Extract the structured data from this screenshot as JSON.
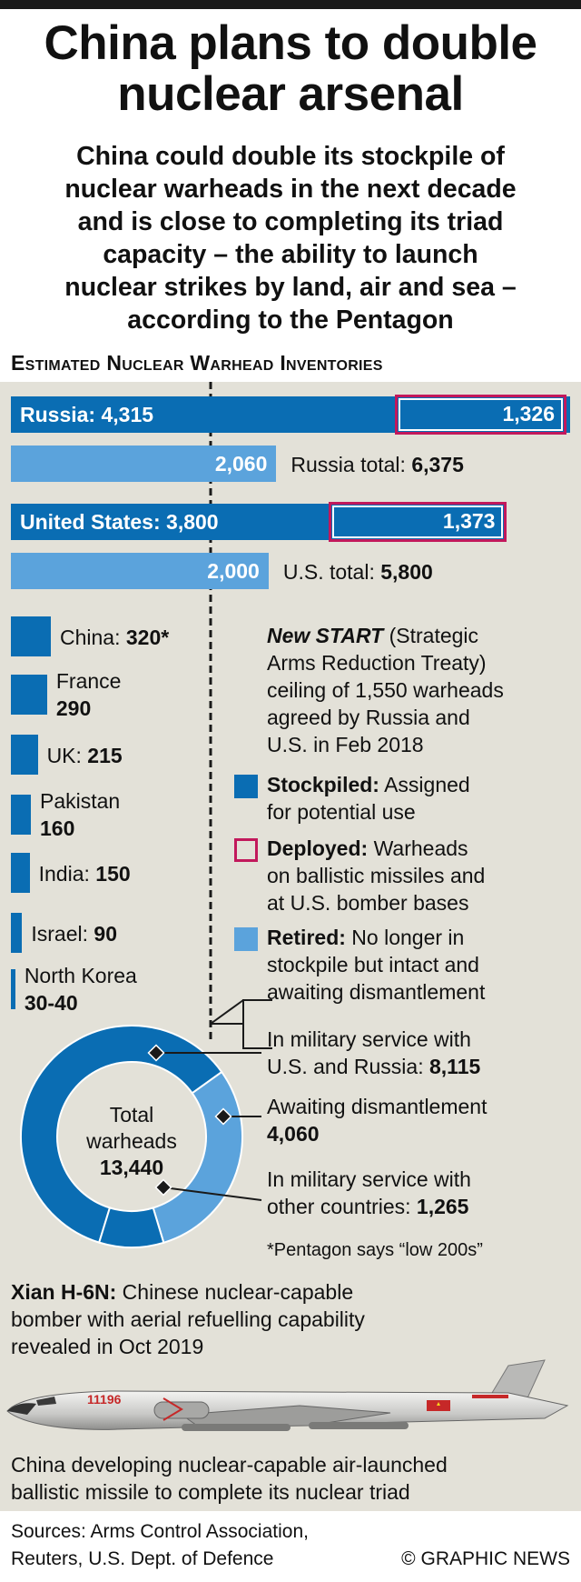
{
  "title_line1": "China plans to double",
  "title_line2": "nuclear arsenal",
  "subtitle": [
    "China could double its stockpile of",
    "nuclear warheads in the next decade",
    "and is close to completing its triad",
    "capacity – the ability to launch",
    "nuclear strikes by land, air and sea –",
    "according to the Pentagon"
  ],
  "section_heading": "Estimated Nuclear Warhead Inventories",
  "colors": {
    "stockpiled": "#0a6db3",
    "retired": "#5ba3dc",
    "deployed_border": "#c2185b",
    "panel": "#e3e1d8"
  },
  "chart_data": {
    "type": "bar",
    "scale_max": 6375,
    "new_start_ceiling": 1550,
    "russia": {
      "label": "Russia:",
      "stockpiled": 4315,
      "stockpiled_text": "4,315",
      "deployed": 1326,
      "deployed_text": "1,326",
      "retired": 2060,
      "retired_text": "2,060",
      "total_label": "Russia total:",
      "total_text": "6,375"
    },
    "us": {
      "label": "United States:",
      "stockpiled": 3800,
      "stockpiled_text": "3,800",
      "deployed": 1373,
      "deployed_text": "1,373",
      "retired": 2000,
      "retired_text": "2,000",
      "total_label": "U.S. total:",
      "total_text": "5,800"
    },
    "small_countries": [
      {
        "name": "China:",
        "value": 320,
        "value_text": "320*",
        "inline": true
      },
      {
        "name": "France",
        "value": 290,
        "value_text": "290",
        "inline": false
      },
      {
        "name": "UK:",
        "value": 215,
        "value_text": "215",
        "inline": true
      },
      {
        "name": "Pakistan",
        "value": 160,
        "value_text": "160",
        "inline": false
      },
      {
        "name": "India:",
        "value": 150,
        "value_text": "150",
        "inline": true
      },
      {
        "name": "Israel:",
        "value": 90,
        "value_text": "90",
        "inline": true
      },
      {
        "name": "North Korea",
        "value": 35,
        "value_text": "30-40",
        "inline": false
      }
    ],
    "donut": {
      "total_line1": "Total",
      "total_line2": "warheads",
      "total_value": "13,440",
      "segments": [
        {
          "label_line1": "In military service with",
          "label_prefix": "U.S. and Russia:",
          "value": 8115,
          "value_text": "8,115"
        },
        {
          "label_line1": "Awaiting dismantlement",
          "label_prefix": "",
          "value": 4060,
          "value_text": "4,060"
        },
        {
          "label_line1": "In military service with",
          "label_prefix": "other countries:",
          "value": 1265,
          "value_text": "1,265"
        }
      ]
    }
  },
  "new_start": {
    "name": "New START",
    "lines": [
      " (Strategic",
      "Arms Reduction Treaty)",
      "ceiling of 1,550 warheads",
      "agreed by Russia and",
      "U.S. in Feb 2018"
    ]
  },
  "legend": {
    "stockpiled": {
      "term": "Stockpiled:",
      "line1": " Assigned",
      "line2": "for potential use"
    },
    "deployed": {
      "term": "Deployed:",
      "line1": " Warheads",
      "line2": "on ballistic missiles and",
      "line3": "at U.S. bomber bases"
    },
    "retired": {
      "term": "Retired:",
      "line1": " No longer in",
      "line2": "stockpile but intact and",
      "line3": "awaiting dismantlement"
    }
  },
  "footnote": "*Pentagon says “low 200s”",
  "bomber": {
    "name": "Xian H-6N:",
    "line1": " Chinese nuclear-capable",
    "line2": "bomber with aerial refuelling capability",
    "line3": "revealed in Oct 2019",
    "tail_number": "11196"
  },
  "triad_text": [
    "China developing nuclear-capable air-launched",
    "ballistic missile to complete its nuclear triad"
  ],
  "sources": [
    "Sources: Arms Control Association,",
    "Reuters, U.S. Dept. of Defence"
  ],
  "credit": "© GRAPHIC NEWS"
}
